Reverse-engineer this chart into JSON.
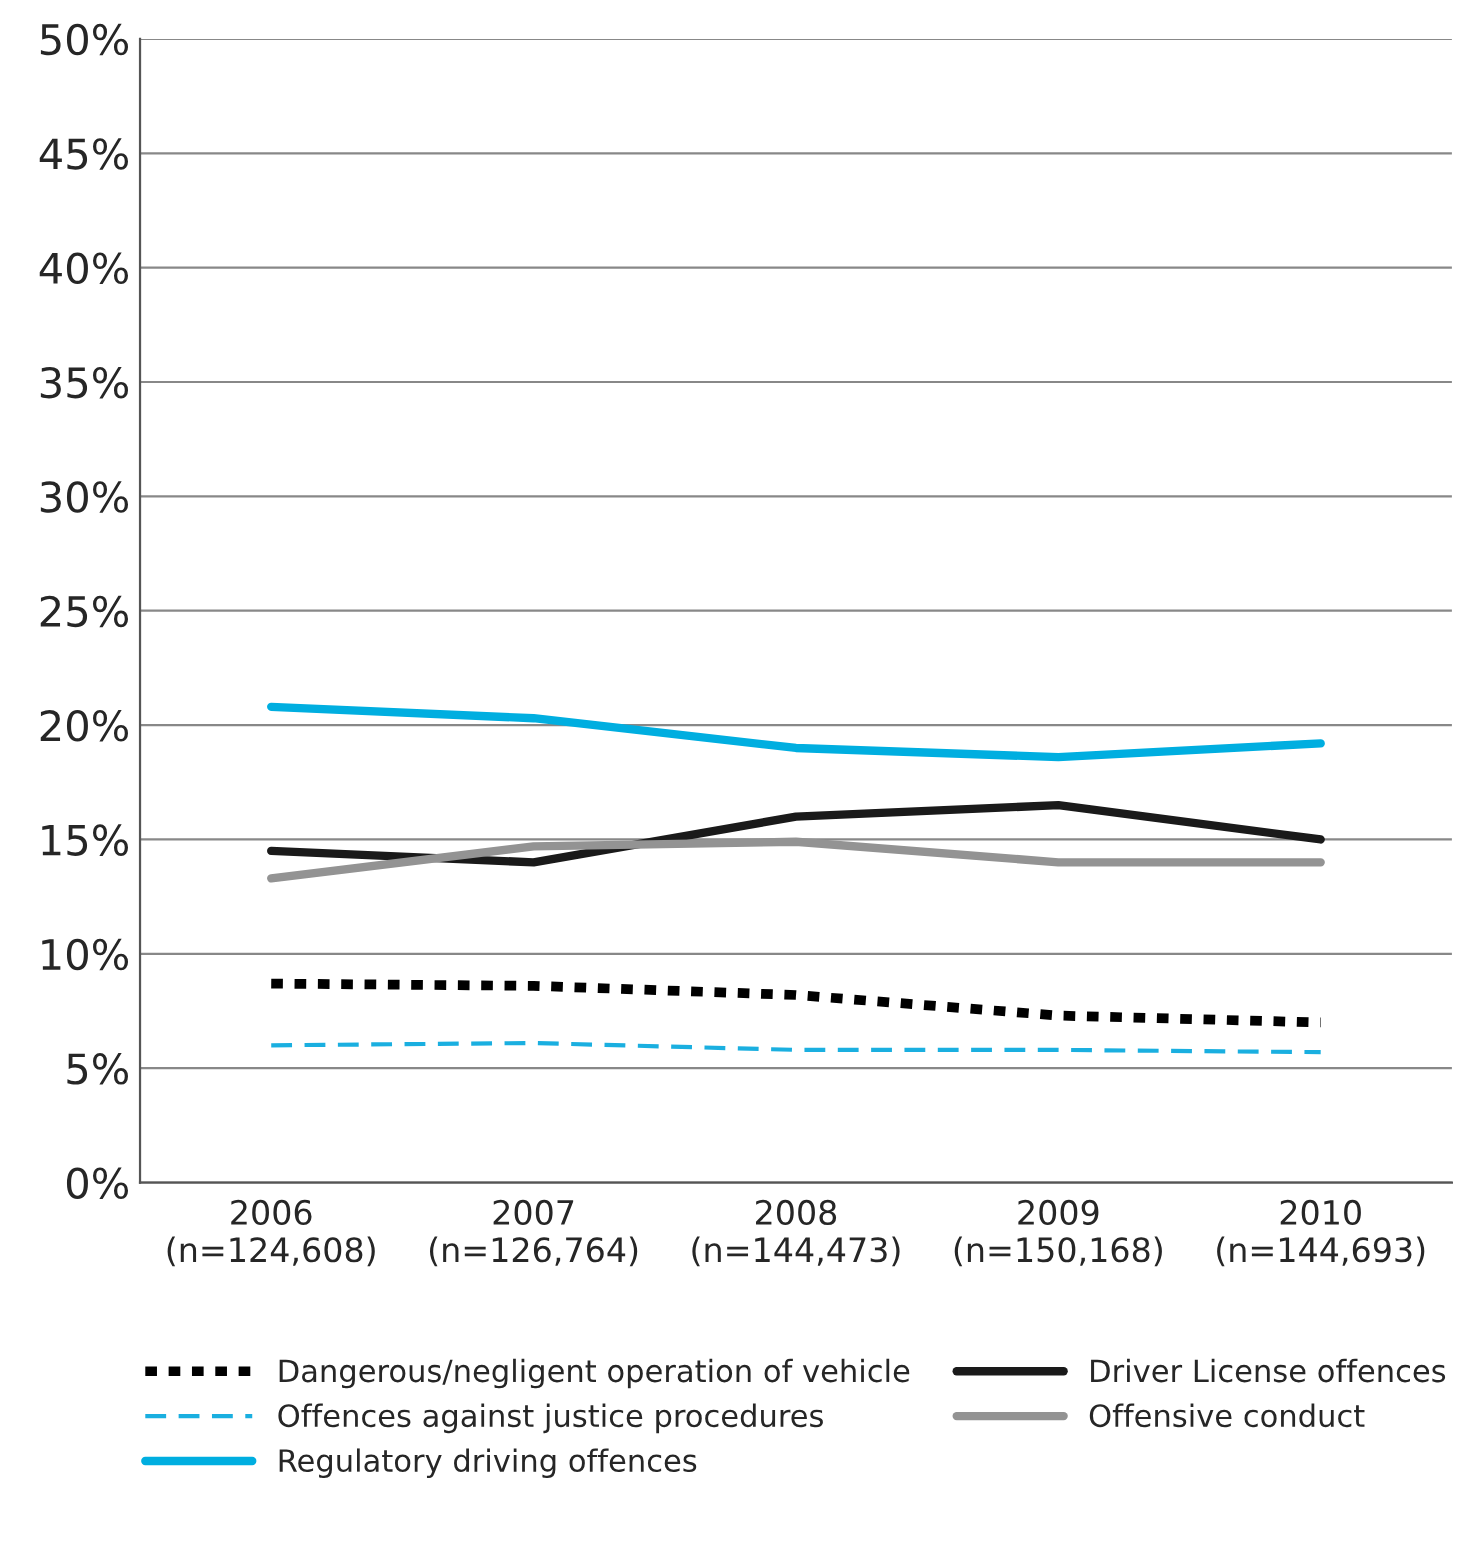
{
  "chart_data": {
    "type": "line",
    "categories": [
      "2006\n(n=124,608)",
      "2007\n(n=126,764)",
      "2008\n(n=144,473)",
      "2009\n(n=150,168)",
      "2010\n(n=144,693)"
    ],
    "series": [
      {
        "name": "Dangerous/negligent operation of vehicle",
        "color": "#000000",
        "line_style": "dotted",
        "values": [
          8.7,
          8.6,
          8.2,
          7.3,
          7.0
        ]
      },
      {
        "name": "Offences against justice procedures",
        "color": "#1aafe0",
        "line_style": "dashed",
        "values": [
          6.0,
          6.1,
          5.8,
          5.8,
          5.7
        ]
      },
      {
        "name": "Regulatory driving offences",
        "color": "#00aee0",
        "line_style": "solid",
        "values": [
          20.8,
          20.3,
          19.0,
          18.6,
          19.2
        ]
      },
      {
        "name": "Driver License offences",
        "color": "#1a1a1a",
        "line_style": "solid",
        "values": [
          14.5,
          14.0,
          16.0,
          16.5,
          15.0
        ]
      },
      {
        "name": "Offensive conduct",
        "color": "#939393",
        "line_style": "solid",
        "values": [
          13.3,
          14.7,
          14.9,
          14.0,
          14.0
        ]
      }
    ],
    "ylim": [
      0,
      50
    ],
    "yticks": [
      {
        "value": 0,
        "label": "0%"
      },
      {
        "value": 5,
        "label": "5%"
      },
      {
        "value": 10,
        "label": "10%"
      },
      {
        "value": 15,
        "label": "15%"
      },
      {
        "value": 20,
        "label": "20%"
      },
      {
        "value": 25,
        "label": "25%"
      },
      {
        "value": 30,
        "label": "30%"
      },
      {
        "value": 35,
        "label": "35%"
      },
      {
        "value": 40,
        "label": "40%"
      },
      {
        "value": 45,
        "label": "45%"
      },
      {
        "value": 50,
        "label": "50%"
      }
    ],
    "grid": "y",
    "legend": "bottom",
    "marker": "none"
  }
}
